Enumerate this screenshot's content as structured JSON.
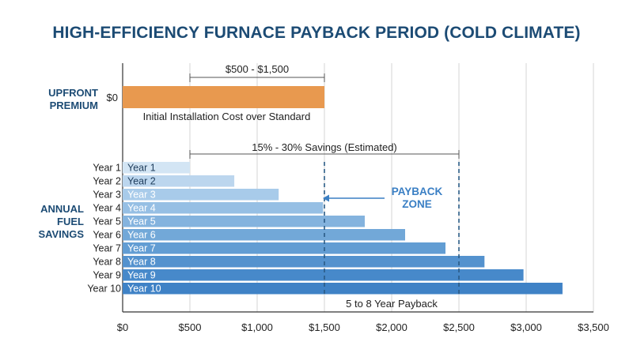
{
  "title": "HIGH-EFFICIENCY FURNACE PAYBACK PERIOD (COLD CLIMATE)",
  "section_labels": {
    "upfront_line1": "UPFRONT",
    "upfront_line2": "PREMIUM",
    "annual_line1": "ANNUAL",
    "annual_line2": "FUEL",
    "annual_line3": "SAVINGS"
  },
  "colors": {
    "title": "#1c4b74",
    "premium_bar": "#e8994f",
    "dashed_line": "#2a5b86",
    "payback_label": "#3a7fc4",
    "grid": "#d6d6d6",
    "axis": "#333333"
  },
  "chart_data": {
    "type": "bar",
    "orientation": "horizontal",
    "title": "HIGH-EFFICIENCY FURNACE PAYBACK PERIOD (COLD CLIMATE)",
    "xlabel": "",
    "ylabel": "",
    "xlim": [
      0,
      3500
    ],
    "x_ticks": [
      {
        "value": 0,
        "label": "$0"
      },
      {
        "value": 500,
        "label": "$500"
      },
      {
        "value": 1000,
        "label": "$1,000"
      },
      {
        "value": 1500,
        "label": "$1,500"
      },
      {
        "value": 2000,
        "label": "$2,000"
      },
      {
        "value": 2500,
        "label": "$2,500"
      },
      {
        "value": 3000,
        "label": "$3,000"
      },
      {
        "value": 3500,
        "label": "$3,500"
      }
    ],
    "grid": true,
    "premium": {
      "row_label": "$0",
      "value": 1500,
      "caption": "Initial Installation Cost over Standard",
      "range_label": "$500 - $1,500",
      "range": [
        500,
        1500
      ]
    },
    "savings_range": {
      "label": "15% - 30% Savings (Estimated)",
      "range": [
        500,
        2500
      ]
    },
    "categories": [
      "Year 1",
      "Year 2",
      "Year 3",
      "Year 4",
      "Year 5",
      "Year 6",
      "Year 7",
      "Year 8",
      "Year 9",
      "Year 10"
    ],
    "values": [
      500,
      830,
      1160,
      1490,
      1800,
      2100,
      2400,
      2690,
      2980,
      3270
    ],
    "bar_colors": [
      "#d3e5f4",
      "#bcd6ee",
      "#a8cbea",
      "#96bfe4",
      "#84b3de",
      "#72a8d8",
      "#629dd3",
      "#5492ce",
      "#4789ca",
      "#3f82c6"
    ],
    "payback_zone": {
      "range": [
        1500,
        2500
      ],
      "label_line1": "PAYBACK",
      "label_line2": "ZONE",
      "caption": "5 to 8 Year Payback"
    }
  }
}
